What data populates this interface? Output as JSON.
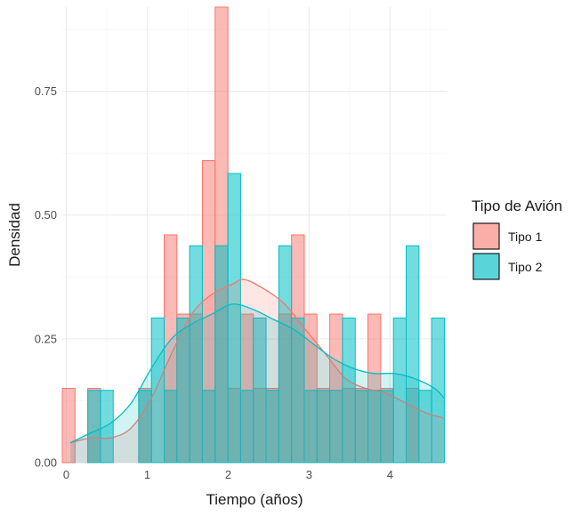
{
  "chart_data": {
    "type": "histogram",
    "xlabel": "Tiempo (años)",
    "ylabel": "Densidad",
    "xlim": [
      -0.05,
      4.7
    ],
    "ylim": [
      0,
      0.92
    ],
    "x_ticks": [
      0,
      1,
      2,
      3,
      4
    ],
    "y_ticks": [
      0.0,
      0.25,
      0.5,
      0.75
    ],
    "y_tick_labels": [
      "0.00",
      "0.25",
      "0.50",
      "0.75"
    ],
    "bin_edges": [
      -0.05,
      0.1074,
      0.2648,
      0.4222,
      0.5796,
      0.737,
      0.8944,
      1.0518,
      1.2092,
      1.3666,
      1.524,
      1.6814,
      1.8388,
      1.9962,
      2.1536,
      2.311,
      2.4684,
      2.6258,
      2.7832,
      2.9406,
      3.098,
      3.2554,
      3.4128,
      3.5702,
      3.7276,
      3.885,
      4.0424,
      4.1998,
      4.3572,
      4.5146,
      4.672
    ],
    "grid": true,
    "legend": {
      "title": "Tipo de Avión",
      "position": "right"
    },
    "series": [
      {
        "name": "Tipo 1",
        "color": "#F8766D",
        "fill_opacity": 0.5,
        "values": [
          0.15,
          0,
          0.15,
          0,
          0,
          0,
          0.15,
          0,
          0.46,
          0.3,
          0.3,
          0.61,
          0.92,
          0.15,
          0.3,
          0.15,
          0.15,
          0.3,
          0.46,
          0.3,
          0.15,
          0.3,
          0.15,
          0.15,
          0.3,
          0.15,
          0,
          0.15,
          0,
          0
        ],
        "density": [
          [
            0.05,
            0.04
          ],
          [
            0.3,
            0.05
          ],
          [
            0.55,
            0.05
          ],
          [
            0.8,
            0.07
          ],
          [
            1.05,
            0.13
          ],
          [
            1.3,
            0.22
          ],
          [
            1.55,
            0.3
          ],
          [
            1.8,
            0.34
          ],
          [
            2.05,
            0.36
          ],
          [
            2.2,
            0.37
          ],
          [
            2.45,
            0.35
          ],
          [
            2.7,
            0.32
          ],
          [
            2.95,
            0.27
          ],
          [
            3.2,
            0.22
          ],
          [
            3.45,
            0.17
          ],
          [
            3.7,
            0.15
          ],
          [
            3.95,
            0.14
          ],
          [
            4.2,
            0.12
          ],
          [
            4.45,
            0.1
          ],
          [
            4.67,
            0.09
          ]
        ]
      },
      {
        "name": "Tipo 2",
        "color": "#00BFC4",
        "fill_opacity": 0.55,
        "values": [
          0,
          0,
          0.146,
          0.146,
          0,
          0,
          0.146,
          0.292,
          0.146,
          0.292,
          0.438,
          0.146,
          0.438,
          0.584,
          0.146,
          0.292,
          0.146,
          0.438,
          0.292,
          0.146,
          0.146,
          0.146,
          0.292,
          0.146,
          0.146,
          0.146,
          0.292,
          0.438,
          0.146,
          0.292
        ],
        "density": [
          [
            0.05,
            0.04
          ],
          [
            0.3,
            0.06
          ],
          [
            0.55,
            0.08
          ],
          [
            0.8,
            0.12
          ],
          [
            1.05,
            0.19
          ],
          [
            1.3,
            0.25
          ],
          [
            1.55,
            0.28
          ],
          [
            1.8,
            0.3
          ],
          [
            2.05,
            0.32
          ],
          [
            2.3,
            0.31
          ],
          [
            2.55,
            0.29
          ],
          [
            2.8,
            0.27
          ],
          [
            3.05,
            0.24
          ],
          [
            3.3,
            0.21
          ],
          [
            3.55,
            0.19
          ],
          [
            3.8,
            0.18
          ],
          [
            4.05,
            0.18
          ],
          [
            4.3,
            0.17
          ],
          [
            4.55,
            0.15
          ],
          [
            4.67,
            0.13
          ]
        ]
      }
    ]
  }
}
